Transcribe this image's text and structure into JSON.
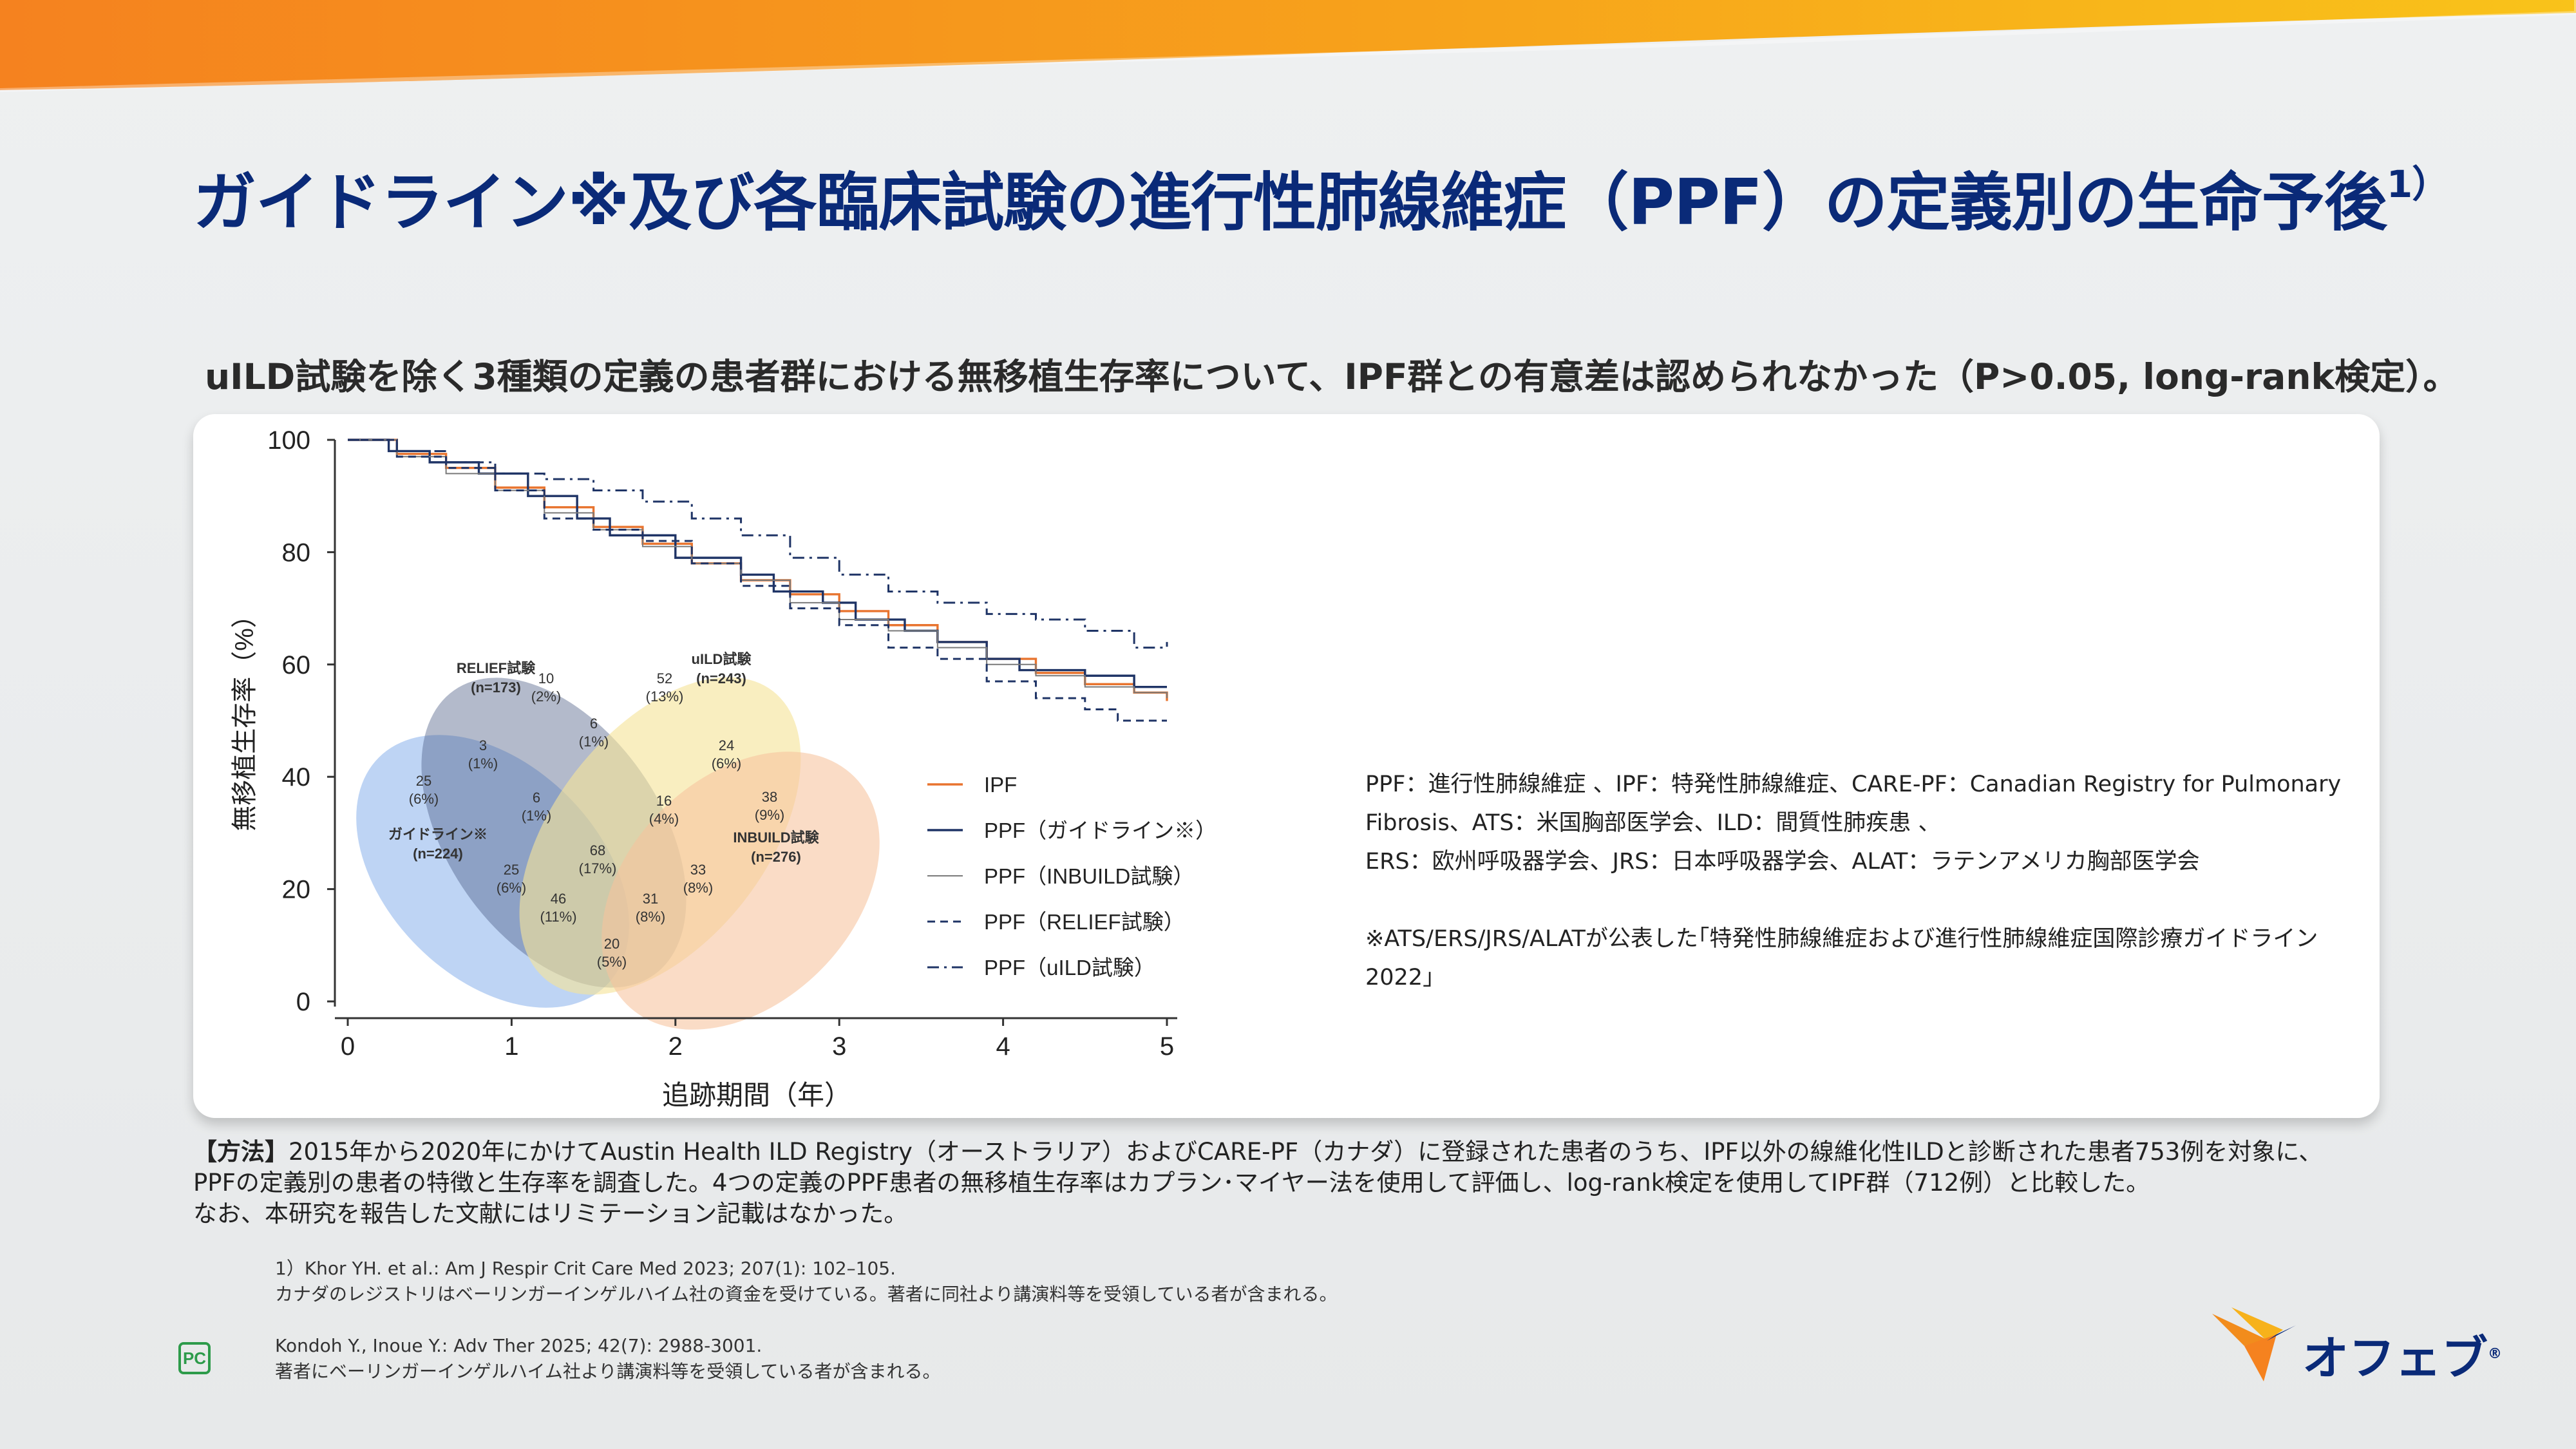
{
  "header": {
    "title": "ガイドライン※及び各臨床試験の進行性肺線維症（PPF）の定義別の生命予後",
    "title_sup": "1）",
    "subtitle": "uILD試験を除く3種類の定義の患者群における無移植生存率について、IPF群との有意差は認められなかった（P>0.05,  long-rank検定）。"
  },
  "colors": {
    "title": "#0a2a78",
    "ipf": "#e8742f",
    "ppf": "#1f3466",
    "accent_orange": "#f28c1c",
    "venn_blue": "#6f9fe6",
    "venn_navy": "#4a5a83",
    "venn_yellow": "#f5e49a",
    "venn_peach": "#f6c29c"
  },
  "chart_data": {
    "type": "line",
    "xlabel": "追跡期間（年）",
    "ylabel": "無移植生存率（%）",
    "xlim": [
      0,
      5
    ],
    "ylim": [
      0,
      100
    ],
    "x_ticks": [
      "0",
      "1",
      "2",
      "3",
      "4",
      "5"
    ],
    "y_ticks": [
      "100",
      "80",
      "60",
      "40",
      "20",
      "0"
    ],
    "grid": false,
    "legend_position": "lower-right inside",
    "series": [
      {
        "name": "IPF",
        "style": "solid",
        "color": "#e8742f",
        "points": [
          [
            0,
            100
          ],
          [
            0.3,
            97.5
          ],
          [
            0.6,
            95
          ],
          [
            0.9,
            91.5
          ],
          [
            1.2,
            88
          ],
          [
            1.5,
            84.5
          ],
          [
            1.8,
            81.5
          ],
          [
            2.1,
            78
          ],
          [
            2.4,
            75
          ],
          [
            2.7,
            72.5
          ],
          [
            3.0,
            69.5
          ],
          [
            3.3,
            67
          ],
          [
            3.6,
            64
          ],
          [
            3.9,
            61
          ],
          [
            4.2,
            58.5
          ],
          [
            4.5,
            56.5
          ],
          [
            4.8,
            55
          ],
          [
            5.0,
            53.5
          ]
        ]
      },
      {
        "name": "PPF（ガイドライン※）",
        "style": "solid",
        "color": "#1f3466",
        "points": [
          [
            0,
            100
          ],
          [
            0.25,
            98
          ],
          [
            0.5,
            96
          ],
          [
            0.8,
            94
          ],
          [
            1.1,
            90
          ],
          [
            1.4,
            86
          ],
          [
            1.6,
            83
          ],
          [
            2.0,
            79
          ],
          [
            2.4,
            76
          ],
          [
            2.6,
            73
          ],
          [
            2.9,
            71
          ],
          [
            3.1,
            68
          ],
          [
            3.4,
            66
          ],
          [
            3.6,
            64
          ],
          [
            3.9,
            61
          ],
          [
            4.1,
            59
          ],
          [
            4.5,
            58
          ],
          [
            4.8,
            56
          ],
          [
            5.0,
            56
          ]
        ]
      },
      {
        "name": "PPF（INBUILD試験）",
        "style": "thin",
        "color": "#7a7a7a",
        "points": [
          [
            0,
            100
          ],
          [
            0.3,
            97
          ],
          [
            0.6,
            94
          ],
          [
            0.9,
            91
          ],
          [
            1.2,
            87
          ],
          [
            1.5,
            84
          ],
          [
            1.8,
            81
          ],
          [
            2.1,
            78
          ],
          [
            2.4,
            75
          ],
          [
            2.7,
            71
          ],
          [
            3.0,
            68
          ],
          [
            3.3,
            66
          ],
          [
            3.6,
            63
          ],
          [
            3.9,
            60
          ],
          [
            4.2,
            58
          ],
          [
            4.5,
            56
          ],
          [
            4.8,
            55
          ],
          [
            5.0,
            54
          ]
        ]
      },
      {
        "name": "PPF（RELIEF試験）",
        "style": "dashed",
        "color": "#1f3466",
        "points": [
          [
            0,
            100
          ],
          [
            0.3,
            97
          ],
          [
            0.6,
            95
          ],
          [
            0.9,
            91
          ],
          [
            1.2,
            86
          ],
          [
            1.5,
            84
          ],
          [
            1.8,
            82
          ],
          [
            2.1,
            78
          ],
          [
            2.4,
            74
          ],
          [
            2.7,
            70
          ],
          [
            3.0,
            67
          ],
          [
            3.3,
            63
          ],
          [
            3.6,
            61
          ],
          [
            3.9,
            57
          ],
          [
            4.2,
            54
          ],
          [
            4.5,
            52
          ],
          [
            4.7,
            50
          ],
          [
            5.0,
            50
          ]
        ]
      },
      {
        "name": "PPF（uILD試験）",
        "style": "dashdot",
        "color": "#1f3466",
        "points": [
          [
            0,
            100
          ],
          [
            0.3,
            98
          ],
          [
            0.6,
            96
          ],
          [
            0.9,
            94
          ],
          [
            1.2,
            93
          ],
          [
            1.5,
            91
          ],
          [
            1.8,
            89
          ],
          [
            2.1,
            86
          ],
          [
            2.4,
            83
          ],
          [
            2.7,
            79
          ],
          [
            3.0,
            76
          ],
          [
            3.3,
            73
          ],
          [
            3.6,
            71
          ],
          [
            3.9,
            69
          ],
          [
            4.2,
            68
          ],
          [
            4.5,
            66
          ],
          [
            4.8,
            63
          ],
          [
            5.0,
            64
          ]
        ]
      }
    ],
    "venn": {
      "sets": [
        {
          "label": "RELIEF試験",
          "n": "(n=173)"
        },
        {
          "label": "uILD試験",
          "n": "(n=243)"
        },
        {
          "label": "ガイドライン※",
          "n": "(n=224)"
        },
        {
          "label": "INBUILD試験",
          "n": "(n=276)"
        }
      ],
      "regions": [
        {
          "count": "10",
          "pct": "(2%)"
        },
        {
          "count": "52",
          "pct": "(13%)"
        },
        {
          "count": "6",
          "pct": "(1%)"
        },
        {
          "count": "3",
          "pct": "(1%)"
        },
        {
          "count": "24",
          "pct": "(6%)"
        },
        {
          "count": "25",
          "pct": "(6%)"
        },
        {
          "count": "6",
          "pct": "(1%)"
        },
        {
          "count": "16",
          "pct": "(4%)"
        },
        {
          "count": "38",
          "pct": "(9%)"
        },
        {
          "count": "68",
          "pct": "(17%)"
        },
        {
          "count": "33",
          "pct": "(8%)"
        },
        {
          "count": "25",
          "pct": "(6%)"
        },
        {
          "count": "46",
          "pct": "(11%)"
        },
        {
          "count": "31",
          "pct": "(8%)"
        },
        {
          "count": "20",
          "pct": "(5%)"
        }
      ]
    }
  },
  "abbreviations": {
    "line1": "PPF：進行性肺線維症 、IPF：特発性肺線維症、CARE-PF：Canadian Registry for Pulmonary",
    "line2": "Fibrosis、ATS：米国胸部医学会、ILD：間質性肺疾患 、",
    "line3": "ERS：欧州呼吸器学会、JRS：日本呼吸器学会、ALAT：ラテンアメリカ胸部医学会",
    "note1": "※ATS/ERS/JRS/ALATが公表した｢特発性肺線維症および進行性肺線維症国際診療ガイドライン",
    "note2": "2022｣"
  },
  "methods": {
    "label": "【方法】",
    "line1": "2015年から2020年にかけてAustin Health ILD Registry（オーストラリア）およびCARE-PF（カナダ）に登録された患者のうち、IPF以外の線維化性ILDと診断された患者753例を対象に、",
    "line2": "PPFの定義別の患者の特徴と生存率を調査した。4つの定義のPPF患者の無移植生存率はカプラン･マイヤー法を使用して評価し、log-rank検定を使用してIPF群（712例）と比較した。",
    "line3": "なお、本研究を報告した文献にはリミテーション記載はなかった。"
  },
  "references": {
    "ref1": "1）Khor YH. et al.: Am J Respir Crit Care Med 2023; 207(1): 102–105.",
    "ref1_note": "カナダのレジストリはベーリンガーインゲルハイム社の資金を受けている。著者に同社より講演料等を受領している者が含まれる。",
    "ref2": "Kondoh Y., Inoue Y.: Adv Ther 2025; 42(7): 2988-3001.",
    "ref2_note": "著者にベーリンガーインゲルハイム社より講演料等を受領している者が含まれる。"
  },
  "footer": {
    "pc_mark": "PC",
    "logo_text": "オフェブ",
    "logo_reg": "®",
    "logo_icon": "bird-logo-icon"
  }
}
